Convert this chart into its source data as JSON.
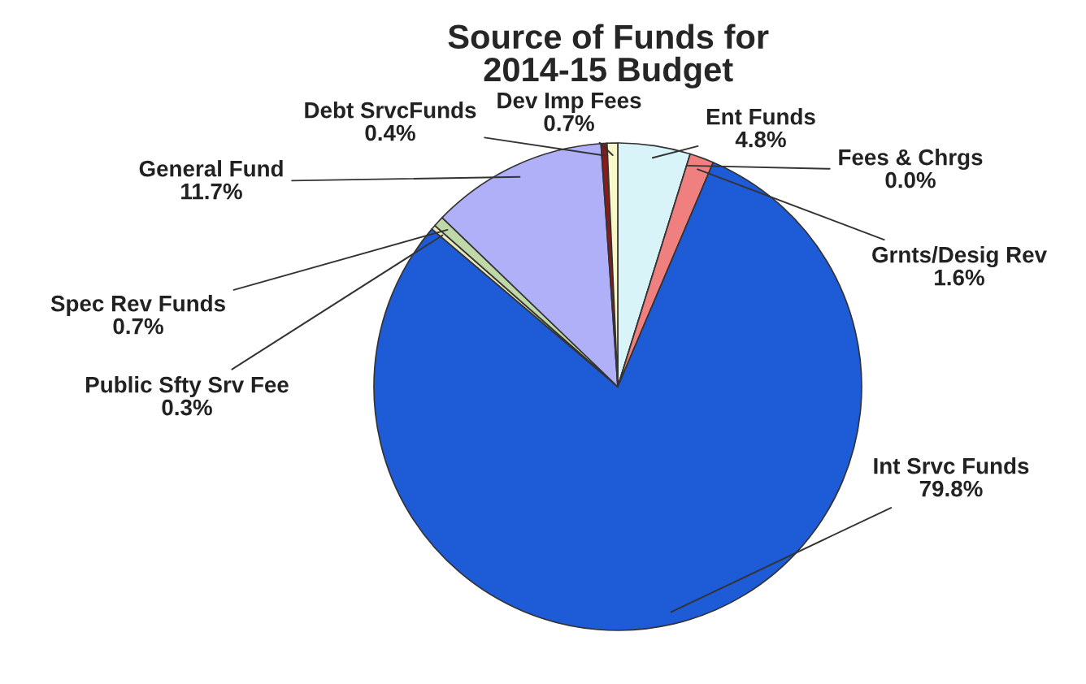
{
  "chart_data": {
    "type": "pie",
    "title": "Source of Funds for\n2014-15 Budget",
    "categories": [
      "Ent Funds",
      "Fees & Chrgs",
      "Grnts/Desig Rev",
      "Int Srvc Funds",
      "Public Sfty Srv Fee",
      "Spec Rev Funds",
      "General Fund",
      "Debt SrvcFunds",
      "Dev Imp Fees"
    ],
    "values": [
      4.8,
      0.0,
      1.6,
      79.8,
      0.3,
      0.7,
      11.7,
      0.4,
      0.7
    ],
    "value_labels": [
      "4.8%",
      "0.0%",
      "1.6%",
      "79.8%",
      "0.3%",
      "0.7%",
      "11.7%",
      "0.4%",
      "0.7%"
    ],
    "colors": [
      "#d8f4f8",
      "#8c8c8c",
      "#f08080",
      "#1e5bd6",
      "#e8e8c0",
      "#c0d8a8",
      "#b0b0f8",
      "#8b1a1a",
      "#f8f8c8"
    ]
  }
}
